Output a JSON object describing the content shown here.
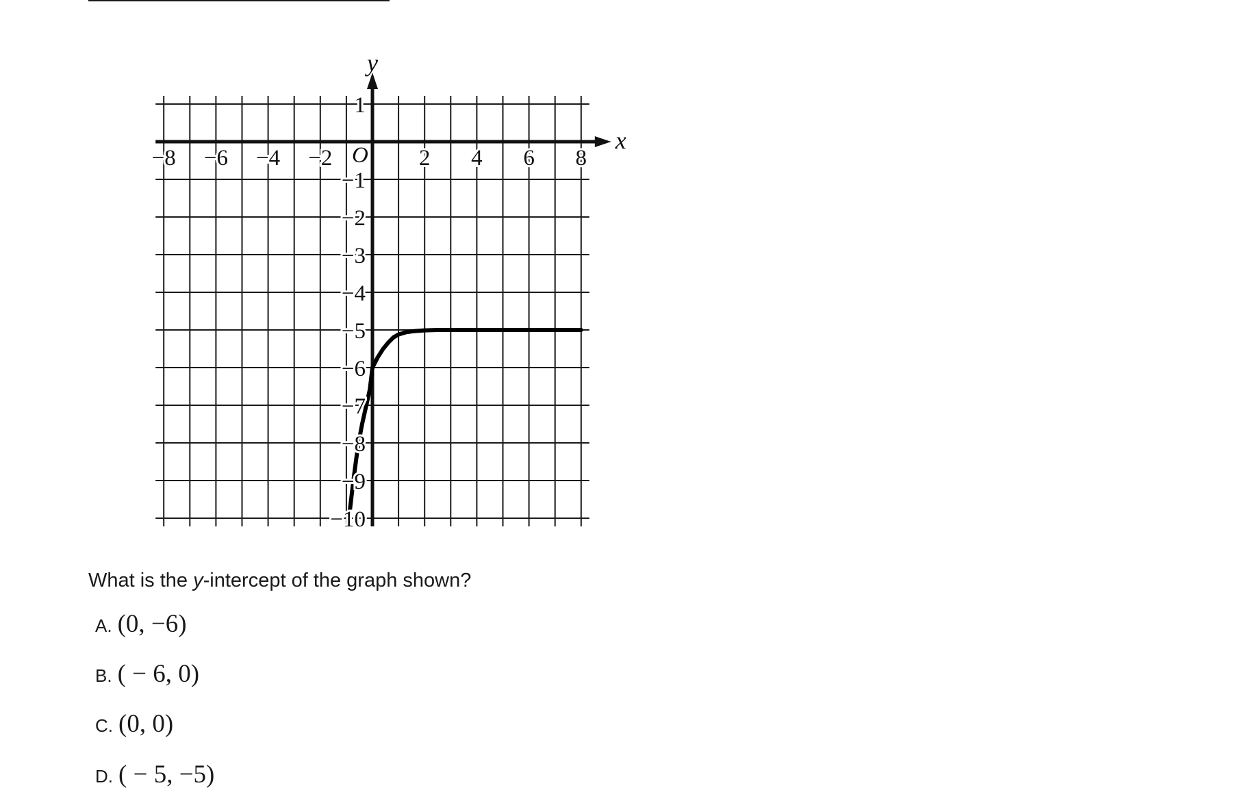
{
  "chart_data": {
    "type": "line",
    "xlabel": "x",
    "ylabel": "y",
    "xlim": [
      -8,
      8
    ],
    "ylim": [
      -10,
      1
    ],
    "x_ticks": [
      -8,
      -6,
      -4,
      -2,
      2,
      4,
      6,
      8
    ],
    "x_tick_labels": [
      "−8",
      "−6",
      "−4",
      "−2",
      "2",
      "4",
      "6",
      "8"
    ],
    "y_ticks": [
      1,
      -1,
      -2,
      -3,
      -4,
      -5,
      -6,
      -7,
      -8,
      -9,
      -10
    ],
    "y_tick_labels": [
      "1",
      "−1",
      "−2",
      "−3",
      "−4",
      "−5",
      "−6",
      "−7",
      "−8",
      "−9",
      "−10"
    ],
    "origin_label": "O",
    "grid": true,
    "series": [
      {
        "x": [
          -0.9,
          -0.8,
          -0.7,
          -0.6,
          -0.5,
          -0.4,
          -0.3,
          -0.2,
          -0.1,
          0,
          0.2,
          0.4,
          0.6,
          0.8,
          1,
          1.3,
          1.6,
          2,
          2.5,
          3,
          4,
          5,
          6,
          7,
          8
        ],
        "y": [
          -10,
          -9.41,
          -8.84,
          -8.32,
          -7.88,
          -7.51,
          -7.2,
          -6.89,
          -6.58,
          -6,
          -5.73,
          -5.51,
          -5.34,
          -5.2,
          -5.12,
          -5.06,
          -5.03,
          -5.01,
          -5,
          -5,
          -5,
          -5,
          -5,
          -5,
          -5
        ]
      }
    ]
  },
  "question": {
    "prefix": "What is the ",
    "variable": "y",
    "suffix": "-intercept of the graph shown?"
  },
  "choices": [
    {
      "letter": "A.",
      "value": "(0, −6)"
    },
    {
      "letter": "B.",
      "value": "( − 6, 0)"
    },
    {
      "letter": "C.",
      "value": "(0, 0)"
    },
    {
      "letter": "D.",
      "value": "( − 5, −5)"
    }
  ]
}
